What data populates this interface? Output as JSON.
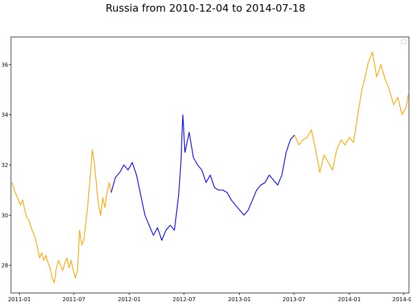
{
  "chart_data": {
    "type": "line",
    "title": "Russia from 2010-12-04 to 2014-07-18",
    "xlabel": "",
    "ylabel": "",
    "xlim": [
      "2010-12-04",
      "2014-07-18"
    ],
    "ylim": [
      26.9,
      37.1
    ],
    "grid": false,
    "legend": "top-right",
    "x_ticks": [
      "2011-01",
      "2011-07",
      "2012-01",
      "2012-07",
      "2013-01",
      "2013-07",
      "2014-01",
      "2014-07"
    ],
    "y_ticks": [
      28,
      30,
      32,
      34,
      36
    ],
    "colors": {
      "orange": "#ffa500",
      "blue": "#0000ff"
    },
    "series": [
      {
        "color": "orange",
        "x": [
          "2010-12-08",
          "2010-12-15",
          "2010-12-22",
          "2010-12-29",
          "2011-01-05",
          "2011-01-12",
          "2011-01-19",
          "2011-01-26",
          "2011-02-02",
          "2011-02-09",
          "2011-02-16",
          "2011-02-23",
          "2011-03-02",
          "2011-03-09",
          "2011-03-16",
          "2011-03-23",
          "2011-03-30",
          "2011-04-06",
          "2011-04-13",
          "2011-04-20",
          "2011-04-27",
          "2011-05-04",
          "2011-05-11",
          "2011-05-18",
          "2011-05-25",
          "2011-06-01",
          "2011-06-08",
          "2011-06-15",
          "2011-06-22",
          "2011-06-29",
          "2011-07-06",
          "2011-07-13",
          "2011-07-20",
          "2011-07-27",
          "2011-08-03",
          "2011-08-10",
          "2011-08-17",
          "2011-08-24",
          "2011-08-31",
          "2011-09-07",
          "2011-09-14",
          "2011-09-21",
          "2011-09-28",
          "2011-10-05",
          "2011-10-12",
          "2011-10-19",
          "2011-10-26",
          "2011-11-02"
        ],
        "y": [
          31.3,
          31.0,
          30.8,
          30.6,
          30.4,
          30.6,
          30.2,
          29.9,
          29.8,
          29.5,
          29.3,
          29.1,
          28.7,
          28.3,
          28.5,
          28.2,
          28.4,
          28.1,
          27.9,
          27.5,
          27.3,
          27.9,
          28.2,
          28.0,
          27.8,
          28.1,
          28.3,
          27.9,
          28.2,
          27.8,
          27.5,
          27.8,
          29.4,
          28.8,
          29.0,
          29.7,
          30.5,
          31.5,
          32.6,
          32.1,
          31.2,
          30.4,
          30.0,
          30.7,
          30.3,
          30.9,
          31.3,
          30.9
        ]
      },
      {
        "color": "blue",
        "x": [
          "2011-11-02",
          "2011-11-16",
          "2011-11-30",
          "2011-12-14",
          "2011-12-28",
          "2012-01-11",
          "2012-01-25",
          "2012-02-08",
          "2012-02-22",
          "2012-03-07",
          "2012-03-21",
          "2012-04-04",
          "2012-04-18",
          "2012-05-02",
          "2012-05-16",
          "2012-05-30",
          "2012-06-13",
          "2012-06-20",
          "2012-06-27",
          "2012-07-04",
          "2012-07-18",
          "2012-08-01",
          "2012-08-15",
          "2012-08-29",
          "2012-09-12",
          "2012-09-26",
          "2012-10-10",
          "2012-10-24",
          "2012-11-07",
          "2012-11-21",
          "2012-12-05",
          "2012-12-19",
          "2013-01-02",
          "2013-01-16",
          "2013-01-30",
          "2013-02-13",
          "2013-02-27",
          "2013-03-13",
          "2013-03-27",
          "2013-04-10",
          "2013-04-24",
          "2013-05-08",
          "2013-05-22",
          "2013-06-05",
          "2013-06-19",
          "2013-07-03"
        ],
        "y": [
          30.9,
          31.5,
          31.7,
          32.0,
          31.8,
          32.1,
          31.6,
          30.8,
          30.0,
          29.6,
          29.2,
          29.5,
          29.0,
          29.4,
          29.6,
          29.4,
          30.8,
          32.0,
          34.0,
          32.5,
          33.3,
          32.3,
          32.0,
          31.8,
          31.3,
          31.6,
          31.1,
          31.0,
          31.0,
          30.9,
          30.6,
          30.4,
          30.2,
          30.0,
          30.2,
          30.6,
          31.0,
          31.2,
          31.3,
          31.6,
          31.4,
          31.2,
          31.6,
          32.5,
          33.0,
          33.2
        ]
      },
      {
        "color": "orange",
        "x": [
          "2013-07-03",
          "2013-07-17",
          "2013-07-31",
          "2013-08-14",
          "2013-08-28",
          "2013-09-11",
          "2013-09-25",
          "2013-10-09",
          "2013-10-23",
          "2013-11-06",
          "2013-11-20",
          "2013-12-04",
          "2013-12-18",
          "2014-01-01",
          "2014-01-15",
          "2014-01-29",
          "2014-02-12",
          "2014-02-26",
          "2014-03-05",
          "2014-03-19",
          "2014-04-02",
          "2014-04-16",
          "2014-04-30",
          "2014-05-14",
          "2014-05-28",
          "2014-06-11",
          "2014-06-25",
          "2014-07-09",
          "2014-07-16"
        ],
        "y": [
          33.2,
          32.8,
          33.0,
          33.1,
          33.4,
          32.6,
          31.7,
          32.4,
          32.1,
          31.8,
          32.6,
          33.0,
          32.8,
          33.1,
          32.9,
          34.0,
          35.0,
          35.7,
          36.1,
          36.5,
          35.5,
          36.0,
          35.4,
          35.0,
          34.4,
          34.7,
          34.0,
          34.3,
          34.8
        ]
      }
    ]
  }
}
